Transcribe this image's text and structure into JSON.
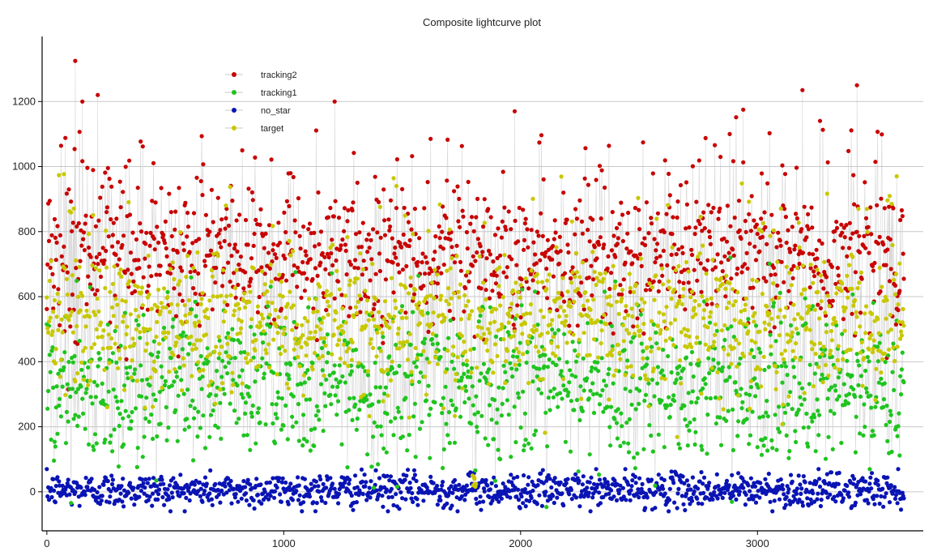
{
  "chart_data": {
    "type": "scatter",
    "title": "Composite lightcurve plot",
    "xlabel": "",
    "ylabel": "",
    "xlim": [
      -20,
      3700
    ],
    "ylim": [
      -120,
      1400
    ],
    "x_ticks": [
      0,
      1000,
      2000,
      3000
    ],
    "y_ticks": [
      0,
      200,
      400,
      600,
      800,
      1000,
      1200
    ],
    "grid": "horizontal",
    "legend_position": "top-left",
    "connecting_lines": true,
    "n_points": 3620,
    "series": [
      {
        "name": "tracking2",
        "color": "#c80000",
        "typical_center": 730,
        "typical_range": [
          520,
          950
        ],
        "peak_max": 1325
      },
      {
        "name": "tracking1",
        "color": "#1fc41f",
        "typical_center": 330,
        "typical_range": [
          170,
          650
        ],
        "peak_max": 900
      },
      {
        "name": "no_star",
        "color": "#0a14b4",
        "typical_center": 5,
        "typical_range": [
          -40,
          65
        ],
        "peak_max": 70
      },
      {
        "name": "target",
        "color": "#c8c800",
        "typical_center": 520,
        "typical_range": [
          330,
          740
        ],
        "peak_max": 1050
      }
    ],
    "notable_points": [
      {
        "series": "tracking2",
        "x": 120,
        "y": 1325
      },
      {
        "series": "tracking2",
        "x": 150,
        "y": 1200
      },
      {
        "series": "tracking2",
        "x": 215,
        "y": 1220
      },
      {
        "series": "tracking2",
        "x": 1215,
        "y": 1200
      },
      {
        "series": "tracking2",
        "x": 1975,
        "y": 1170
      },
      {
        "series": "tracking2",
        "x": 2940,
        "y": 1175
      },
      {
        "series": "tracking2",
        "x": 3190,
        "y": 1235
      },
      {
        "series": "tracking2",
        "x": 3420,
        "y": 1250
      },
      {
        "series": "target",
        "x": 1805,
        "y": 40
      }
    ]
  },
  "colors": {
    "grid": "#c8c8c8",
    "axis": "#000000",
    "connector": "#c8c8c8"
  }
}
